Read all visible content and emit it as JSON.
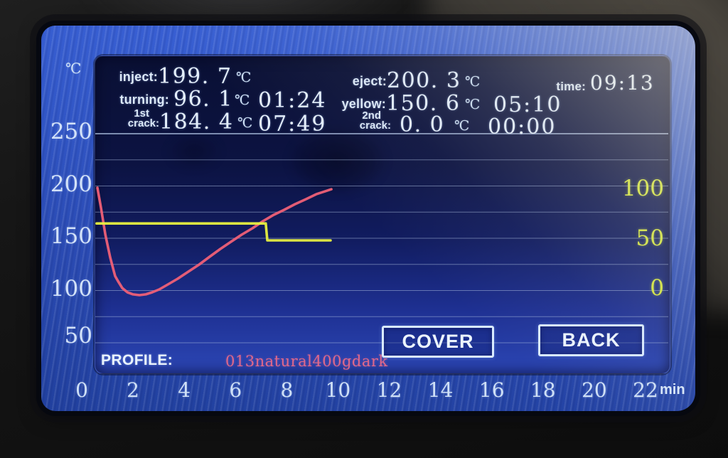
{
  "screen": {
    "readouts": {
      "inject": {
        "label": "inject:",
        "value": "199. 7",
        "unit": "℃"
      },
      "eject": {
        "label": "eject:",
        "value": "200. 3",
        "unit": "℃"
      },
      "time": {
        "label": "time:",
        "value": "09:13"
      },
      "turning": {
        "label": "turning:",
        "value": "96. 1",
        "unit": "℃",
        "time": "01:24"
      },
      "yellow": {
        "label": "yellow:",
        "value": "150. 6",
        "unit": "℃",
        "time": "05:10"
      },
      "first_crack": {
        "label_line1": "1st",
        "label_line2": "crack:",
        "value": "184. 4",
        "unit": "℃",
        "time": "07:49"
      },
      "second_crack": {
        "label_line1": "2nd",
        "label_line2": "crack:",
        "value": "0. 0",
        "unit": "℃",
        "time": "00:00"
      }
    },
    "profile": {
      "label": "PROFILE:",
      "value": "013natural400gdark"
    },
    "buttons": {
      "cover": "COVER",
      "back": "BACK"
    },
    "axis_units": {
      "left": "℃",
      "x": "min"
    }
  },
  "colors": {
    "bean_curve": "#ef6077",
    "power_curve": "#e8f040",
    "gridline": "#aec0e2",
    "left_tick_text": "#d3e2f8",
    "right_tick_text": "#d6e83e",
    "profile_value": "#e0688a"
  },
  "chart_data": {
    "type": "line",
    "title": "",
    "xlabel": "min",
    "x_axis": {
      "ticks": [
        0,
        2,
        4,
        6,
        8,
        10,
        12,
        14,
        16,
        18,
        20,
        22
      ],
      "range": [
        0,
        22
      ]
    },
    "left_y_axis": {
      "label": "℃",
      "ticks": [
        250,
        200,
        150,
        100,
        50
      ],
      "range": [
        50,
        250
      ],
      "grid_step": 25
    },
    "right_y_axis": {
      "ticks": [
        100,
        50,
        0
      ],
      "range": [
        0,
        100
      ]
    },
    "grid": "horizontal-only",
    "legend": "none",
    "series": [
      {
        "name": "bean-temperature",
        "axis": "left",
        "color": "#ef6077",
        "points": [
          [
            0.61,
            198.3
          ],
          [
            0.75,
            179.3
          ],
          [
            0.92,
            153.4
          ],
          [
            1.11,
            131.6
          ],
          [
            1.3,
            113.9
          ],
          [
            1.41,
            109.2
          ],
          [
            1.58,
            102.4
          ],
          [
            1.78,
            98.3
          ],
          [
            2.0,
            96.3
          ],
          [
            2.25,
            95.6
          ],
          [
            2.5,
            96.3
          ],
          [
            2.75,
            98.3
          ],
          [
            3.02,
            101.0
          ],
          [
            3.36,
            105.8
          ],
          [
            3.74,
            111.2
          ],
          [
            4.16,
            118.0
          ],
          [
            4.58,
            124.8
          ],
          [
            4.99,
            132.3
          ],
          [
            5.41,
            139.8
          ],
          [
            5.82,
            146.6
          ],
          [
            6.24,
            153.4
          ],
          [
            6.66,
            159.5
          ],
          [
            7.07,
            166.3
          ],
          [
            7.49,
            172.4
          ],
          [
            7.9,
            177.2
          ],
          [
            8.32,
            182.6
          ],
          [
            8.74,
            187.3
          ],
          [
            9.15,
            192.1
          ],
          [
            9.49,
            194.8
          ],
          [
            9.74,
            196.9
          ]
        ]
      },
      {
        "name": "power-setting",
        "axis": "right",
        "color": "#e8f040",
        "points": [
          [
            0.58,
            67
          ],
          [
            7.18,
            67
          ],
          [
            7.24,
            50
          ],
          [
            9.71,
            50
          ]
        ]
      }
    ]
  }
}
